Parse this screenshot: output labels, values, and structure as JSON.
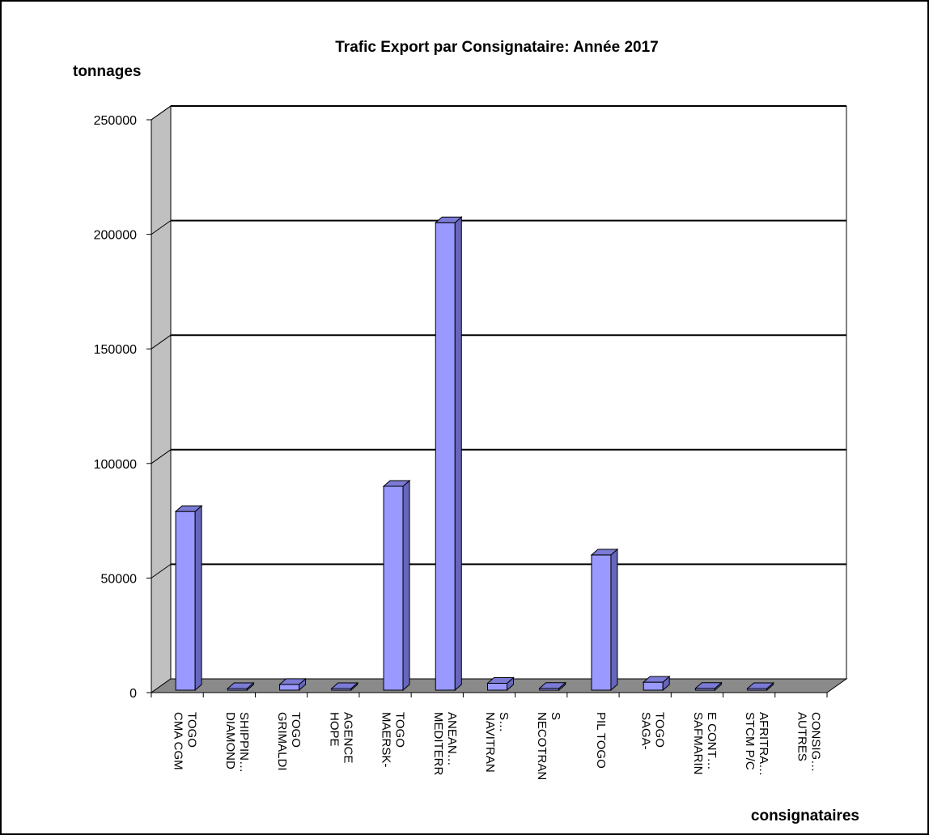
{
  "chart_data": {
    "type": "bar",
    "title": "Trafic Export par Consignataire: Année 2017",
    "ylabel": "tonnages",
    "xlabel": "consignataires",
    "ylim": [
      0,
      250000
    ],
    "yticks": [
      "0",
      "50000",
      "100000",
      "150000",
      "200000",
      "250000"
    ],
    "grid": true,
    "legend": "none",
    "categories": [
      [
        "CMA CGM",
        "TOGO"
      ],
      [
        "DIAMOND",
        "SHIPPIN…"
      ],
      [
        "GRIMALDI",
        "TOGO"
      ],
      [
        "HOPE",
        "AGENCE"
      ],
      [
        "MAERSK-",
        "TOGO"
      ],
      [
        "MEDITERR",
        "ANEAN…"
      ],
      [
        "NAVITRAN",
        "S…"
      ],
      [
        "NECOTRAN",
        "S"
      ],
      [
        "PIL TOGO"
      ],
      [
        "SAGA-",
        "TOGO"
      ],
      [
        "SAFMARIN",
        "E CONT…"
      ],
      [
        "STCM P/C",
        "AFRITRA…"
      ],
      [
        "AUTRES",
        "CONSIG…"
      ]
    ],
    "values": [
      78000,
      300,
      2500,
      200,
      89000,
      204000,
      3000,
      800,
      59000,
      3500,
      800,
      600,
      0
    ],
    "colors": {
      "bar_front": "#9999ff",
      "bar_side": "#6666bb",
      "bar_top": "#7b7bd6",
      "wall": "#c0c0c0",
      "floor": "#8a8a8a"
    }
  }
}
